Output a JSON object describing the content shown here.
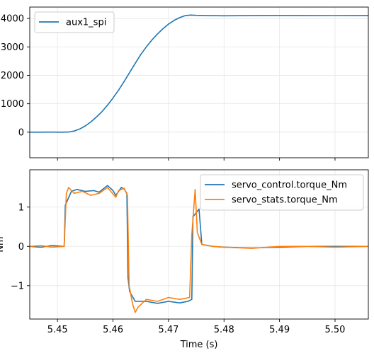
{
  "chart_data": [
    {
      "type": "line",
      "title": "",
      "xlabel": "",
      "ylabel": "",
      "xlim": [
        5.445,
        5.506
      ],
      "ylim": [
        -900,
        4400
      ],
      "yticks": [
        0,
        1000,
        2000,
        3000,
        4000
      ],
      "ytick_labels": [
        "0",
        "1000",
        "2000",
        "3000",
        "4000"
      ],
      "grid": true,
      "legend": "top-left",
      "series": [
        {
          "name": "aux1_spi",
          "color": "#1f77b4",
          "x": [
            5.445,
            5.447,
            5.449,
            5.45,
            5.451,
            5.452,
            5.453,
            5.454,
            5.455,
            5.456,
            5.457,
            5.458,
            5.459,
            5.46,
            5.461,
            5.462,
            5.463,
            5.464,
            5.465,
            5.466,
            5.467,
            5.468,
            5.469,
            5.47,
            5.471,
            5.472,
            5.473,
            5.474,
            5.475,
            5.477,
            5.48,
            5.485,
            5.49,
            5.495,
            5.5,
            5.506
          ],
          "y": [
            0,
            0,
            2,
            0,
            0,
            5,
            40,
            110,
            220,
            360,
            530,
            720,
            950,
            1200,
            1480,
            1780,
            2100,
            2420,
            2730,
            3000,
            3240,
            3450,
            3640,
            3800,
            3930,
            4030,
            4100,
            4120,
            4110,
            4100,
            4095,
            4100,
            4105,
            4100,
            4102,
            4100
          ]
        }
      ]
    },
    {
      "type": "line",
      "title": "",
      "xlabel": "Time (s)",
      "ylabel": "Nm",
      "xlim": [
        5.445,
        5.506
      ],
      "ylim": [
        -1.85,
        1.95
      ],
      "xticks": [
        5.45,
        5.46,
        5.47,
        5.48,
        5.49,
        5.5
      ],
      "xtick_labels": [
        "5.45",
        "5.46",
        "5.47",
        "5.48",
        "5.49",
        "5.50"
      ],
      "yticks": [
        -1,
        0,
        1
      ],
      "ytick_labels": [
        "−1",
        "0",
        "1"
      ],
      "grid": true,
      "legend": "top-right",
      "series": [
        {
          "name": "servo_control.torque_Nm",
          "color": "#1f77b4",
          "x": [
            5.445,
            5.447,
            5.449,
            5.4512,
            5.4514,
            5.4525,
            5.4535,
            5.455,
            5.4565,
            5.4575,
            5.459,
            5.46,
            5.4605,
            5.4615,
            5.462,
            5.4625,
            5.4627,
            5.463,
            5.464,
            5.466,
            5.468,
            5.47,
            5.472,
            5.4735,
            5.4742,
            5.4744,
            5.4755,
            5.476,
            5.478,
            5.48,
            5.485,
            5.49,
            5.495,
            5.5,
            5.506
          ],
          "y": [
            0.0,
            -0.02,
            0.02,
            0.0,
            1.05,
            1.4,
            1.45,
            1.4,
            1.42,
            1.38,
            1.55,
            1.42,
            1.3,
            1.5,
            1.46,
            1.35,
            -0.8,
            -1.15,
            -1.4,
            -1.4,
            -1.45,
            -1.4,
            -1.44,
            -1.4,
            -1.35,
            0.75,
            0.95,
            0.05,
            0.0,
            -0.02,
            -0.04,
            -0.02,
            0.0,
            0.0,
            0.0
          ]
        },
        {
          "name": "servo_stats.torque_Nm",
          "color": "#ff7f0e",
          "x": [
            5.445,
            5.447,
            5.449,
            5.4512,
            5.4516,
            5.452,
            5.453,
            5.4545,
            5.456,
            5.4575,
            5.459,
            5.4605,
            5.461,
            5.462,
            5.4626,
            5.4629,
            5.4635,
            5.464,
            5.4645,
            5.466,
            5.468,
            5.47,
            5.472,
            5.4738,
            5.4742,
            5.4748,
            5.4752,
            5.476,
            5.478,
            5.48,
            5.485,
            5.49,
            5.495,
            5.5,
            5.506
          ],
          "y": [
            0.0,
            0.02,
            -0.02,
            0.0,
            1.35,
            1.5,
            1.35,
            1.4,
            1.3,
            1.35,
            1.5,
            1.25,
            1.42,
            1.48,
            1.3,
            -1.0,
            -1.45,
            -1.68,
            -1.55,
            -1.35,
            -1.4,
            -1.3,
            -1.35,
            -1.3,
            0.3,
            1.45,
            0.35,
            0.05,
            0.0,
            -0.02,
            -0.05,
            0.0,
            0.0,
            -0.02,
            0.0
          ]
        }
      ]
    }
  ]
}
